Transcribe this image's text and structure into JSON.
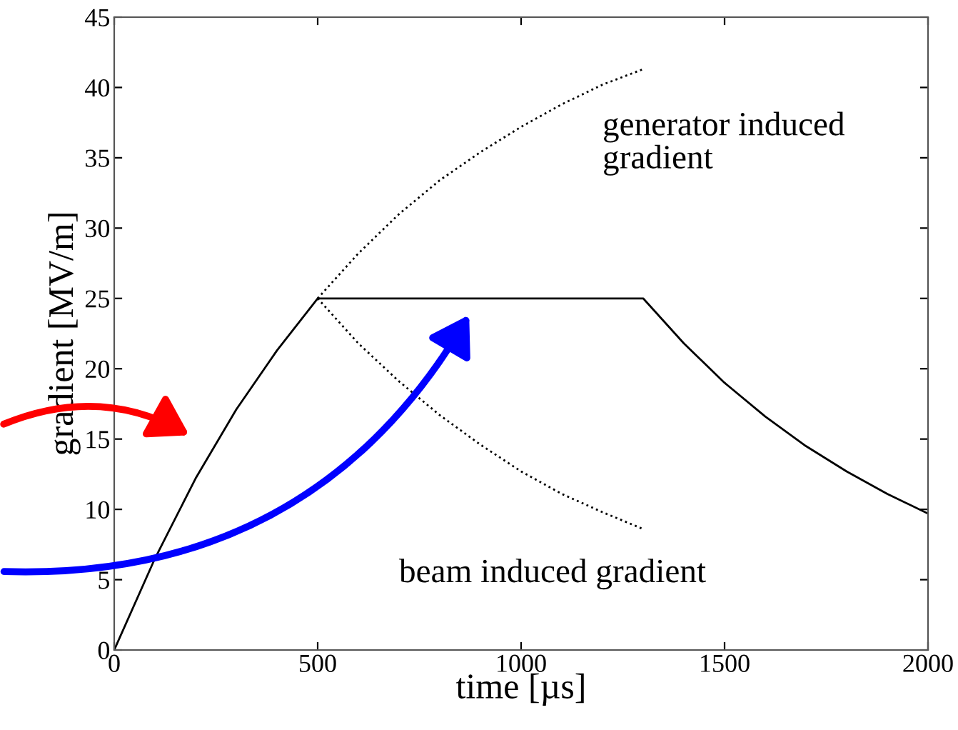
{
  "chart_data": {
    "type": "line",
    "xlabel": "time [µs]",
    "ylabel": "gradient [MV/m]",
    "xlim": [
      0,
      2000
    ],
    "ylim": [
      0,
      45
    ],
    "xticks": [
      0,
      500,
      1000,
      1500,
      2000
    ],
    "yticks": [
      0,
      5,
      10,
      15,
      20,
      25,
      30,
      35,
      40,
      45
    ],
    "grid": false,
    "marker": "none",
    "series": [
      {
        "color": "#000000",
        "line_style": "solid",
        "x": [
          0,
          100,
          200,
          300,
          400,
          500,
          1300,
          1400,
          1500,
          1600,
          1700,
          1800,
          1900,
          2000
        ],
        "values": [
          0,
          6.5,
          12.2,
          17.1,
          21.3,
          25,
          25,
          21.8,
          19.0,
          16.6,
          14.5,
          12.7,
          11.1,
          9.7
        ]
      },
      {
        "color": "#000000",
        "line_style": "dotted",
        "x": [
          500,
          600,
          700,
          800,
          900,
          1000,
          1100,
          1200,
          1300
        ],
        "values": [
          25,
          28.2,
          31.0,
          33.4,
          35.4,
          37.2,
          38.8,
          40.2,
          41.3
        ]
      },
      {
        "color": "#000000",
        "line_style": "dotted",
        "x": [
          500,
          600,
          700,
          800,
          900,
          1000,
          1100,
          1200,
          1300
        ],
        "values": [
          25,
          21.8,
          19.1,
          16.7,
          14.6,
          12.7,
          11.1,
          9.8,
          8.6
        ]
      }
    ],
    "annotations": [
      "generator induced\ngradient",
      "beam induced gradient"
    ]
  }
}
